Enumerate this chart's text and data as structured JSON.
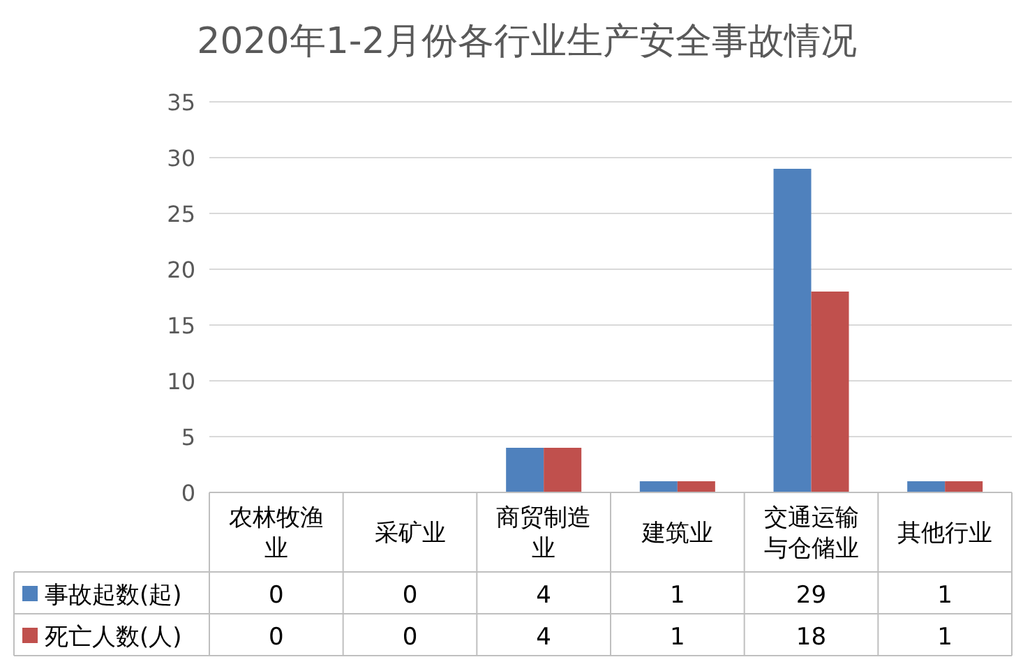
{
  "chart_data": {
    "type": "bar",
    "title": "2020年1-2月份各行业生产安全事故情况",
    "categories": [
      "农林牧渔业",
      "采矿业",
      "商贸制造业",
      "建筑业",
      "交通运输与仓储业",
      "其他行业"
    ],
    "series": [
      {
        "name": "事故起数(起)",
        "color": "#4f81bd",
        "values": [
          0,
          0,
          4,
          1,
          29,
          1
        ]
      },
      {
        "name": "死亡人数(人)",
        "color": "#c0504d",
        "values": [
          0,
          0,
          4,
          1,
          18,
          1
        ]
      }
    ],
    "ylim": [
      0,
      35
    ],
    "yticks": [
      0,
      5,
      10,
      15,
      20,
      25,
      30,
      35
    ],
    "grid": "y",
    "data_labels": true,
    "legend": "bottom"
  }
}
